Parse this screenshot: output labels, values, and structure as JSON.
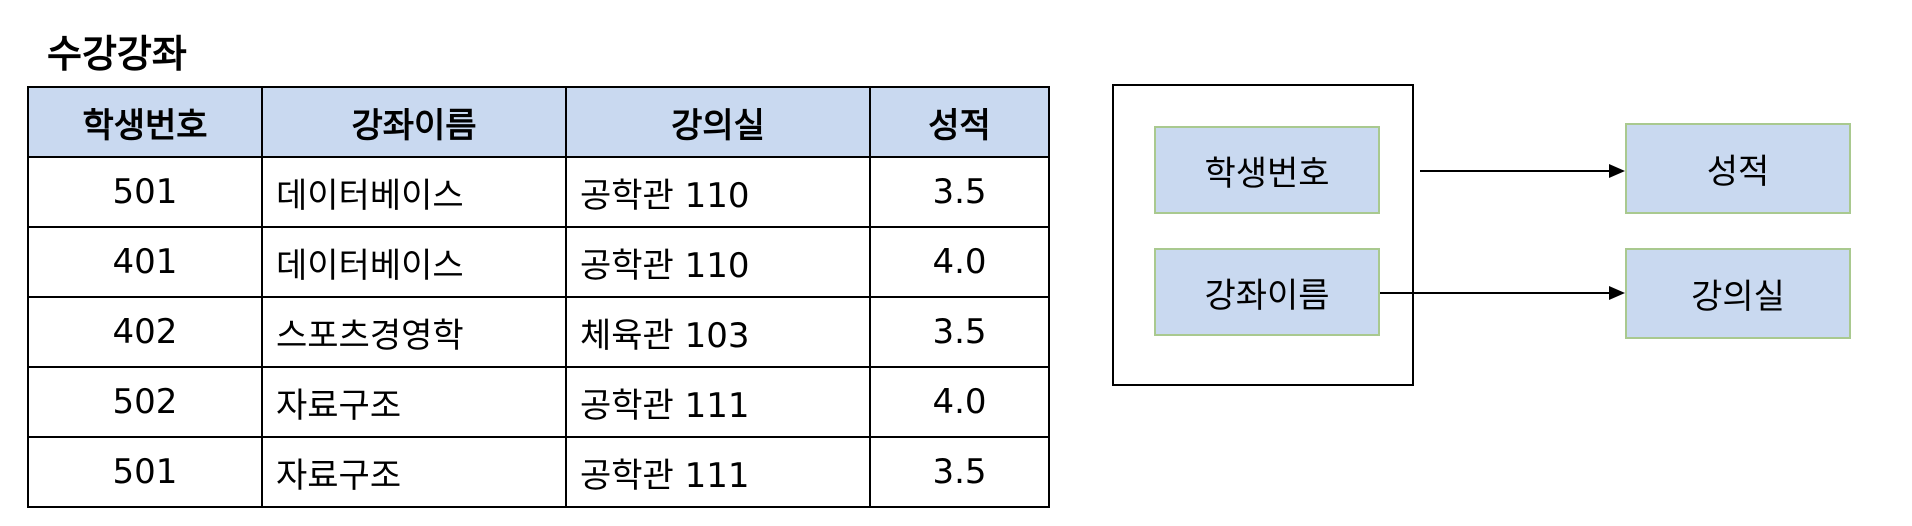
{
  "title": "수강강좌",
  "table": {
    "headers": [
      "학생번호",
      "강좌이름",
      "강의실",
      "성적"
    ],
    "rows": [
      [
        "501",
        "데이터베이스",
        "공학관 110",
        "3.5"
      ],
      [
        "401",
        "데이터베이스",
        "공학관 110",
        "4.0"
      ],
      [
        "402",
        "스포츠경영학",
        "체육관 103",
        "3.5"
      ],
      [
        "502",
        "자료구조",
        "공학관 111",
        "4.0"
      ],
      [
        "501",
        "자료구조",
        "공학관 111",
        "3.5"
      ]
    ]
  },
  "diagram": {
    "determinants": [
      "학생번호",
      "강좌이름"
    ],
    "dependents": [
      "성적",
      "강의실"
    ],
    "arrows": [
      {
        "from": "학생번호",
        "to": "성적"
      },
      {
        "from": "강좌이름",
        "to": "강의실"
      }
    ]
  },
  "colors": {
    "header_fill": "#c9d9f0",
    "box_fill": "#c9d9f0",
    "box_border": "#a9c98f"
  }
}
